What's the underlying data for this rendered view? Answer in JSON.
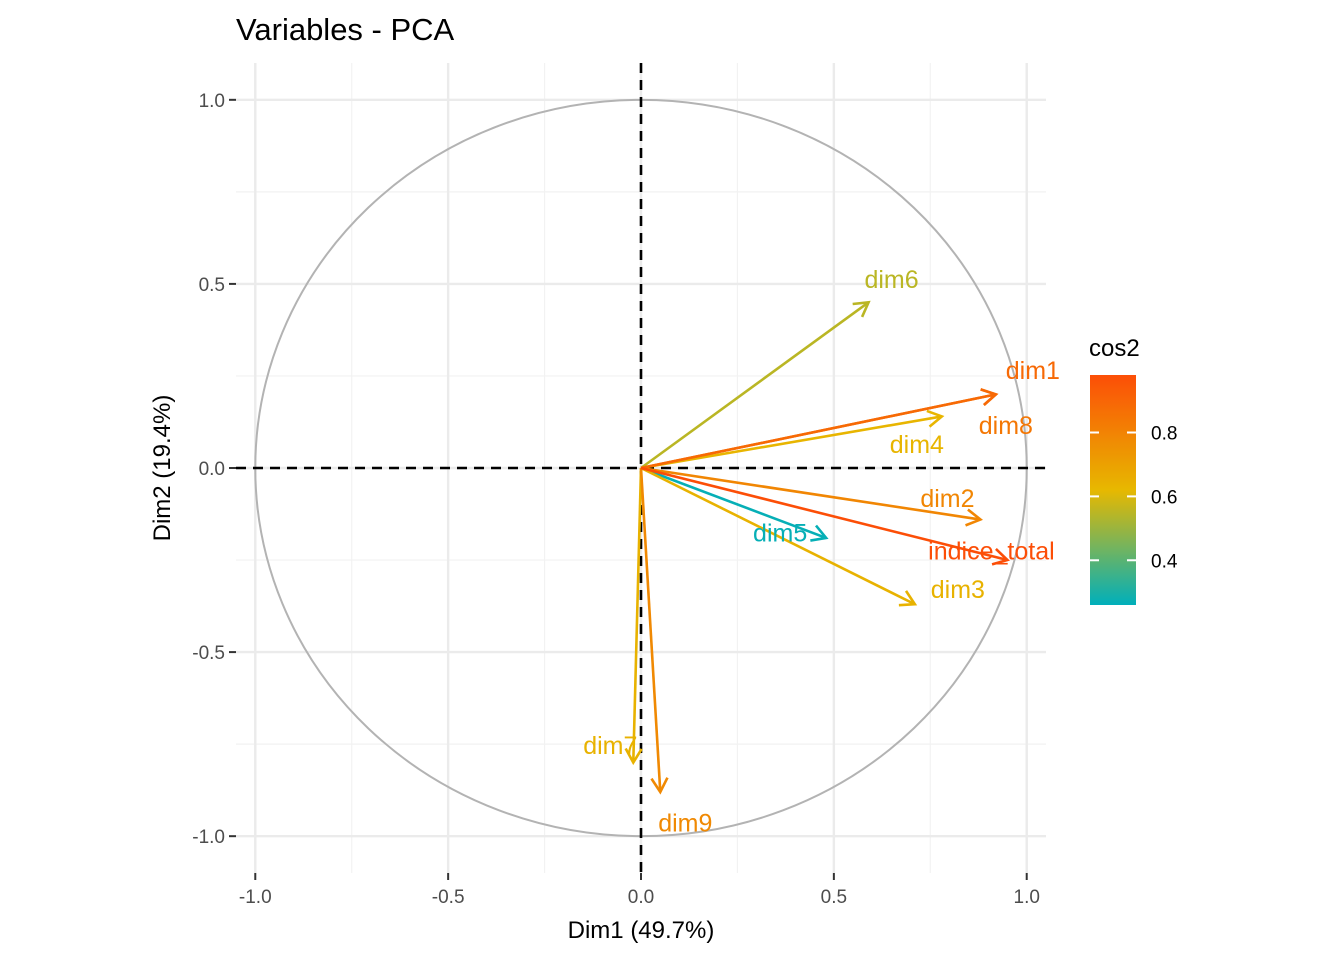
{
  "chart_data": {
    "type": "scatter",
    "title": "Variables - PCA",
    "xlabel": "Dim1 (49.7%)",
    "ylabel": "Dim2 (19.4%)",
    "xlim": [
      -1.05,
      1.05
    ],
    "ylim": [
      -1.1,
      1.1
    ],
    "x_ticks": [
      -1.0,
      -0.5,
      0.0,
      0.5,
      1.0
    ],
    "x_tick_labels": [
      "-1.0",
      "-0.5",
      "0.0",
      "0.5",
      "1.0"
    ],
    "y_ticks": [
      1.0,
      0.5,
      0.0,
      -0.5,
      -1.0
    ],
    "y_tick_labels": [
      "1.0",
      "0.5",
      "0.0",
      "-0.5",
      "-1.0"
    ],
    "grid": true,
    "unit_circle": true,
    "legend": {
      "title": "cos2",
      "placement": "right",
      "range": [
        0.26,
        0.98
      ],
      "ticks": [
        0.8,
        0.6,
        0.4
      ],
      "tick_labels": [
        "0.8",
        "0.6",
        "0.4"
      ],
      "colors": [
        "#00AFBB",
        "#E7B800",
        "#FC4E07"
      ]
    },
    "variables": [
      {
        "name": "dim6",
        "x": 0.59,
        "y": 0.45,
        "cos2": 0.55
      },
      {
        "name": "dim1",
        "x": 0.92,
        "y": 0.2,
        "cos2": 0.89
      },
      {
        "name": "dim8",
        "x": 0.92,
        "y": 0.2,
        "cos2": 0.84
      },
      {
        "name": "dim4",
        "x": 0.78,
        "y": 0.14,
        "cos2": 0.63
      },
      {
        "name": "dim2",
        "x": 0.88,
        "y": -0.14,
        "cos2": 0.79
      },
      {
        "name": "dim5",
        "x": 0.48,
        "y": -0.19,
        "cos2": 0.27
      },
      {
        "name": "indice_total",
        "x": 0.95,
        "y": -0.25,
        "cos2": 0.98
      },
      {
        "name": "dim3",
        "x": 0.71,
        "y": -0.37,
        "cos2": 0.64
      },
      {
        "name": "dim7",
        "x": -0.02,
        "y": -0.8,
        "cos2": 0.64
      },
      {
        "name": "dim9",
        "x": 0.05,
        "y": -0.88,
        "cos2": 0.78
      }
    ]
  }
}
